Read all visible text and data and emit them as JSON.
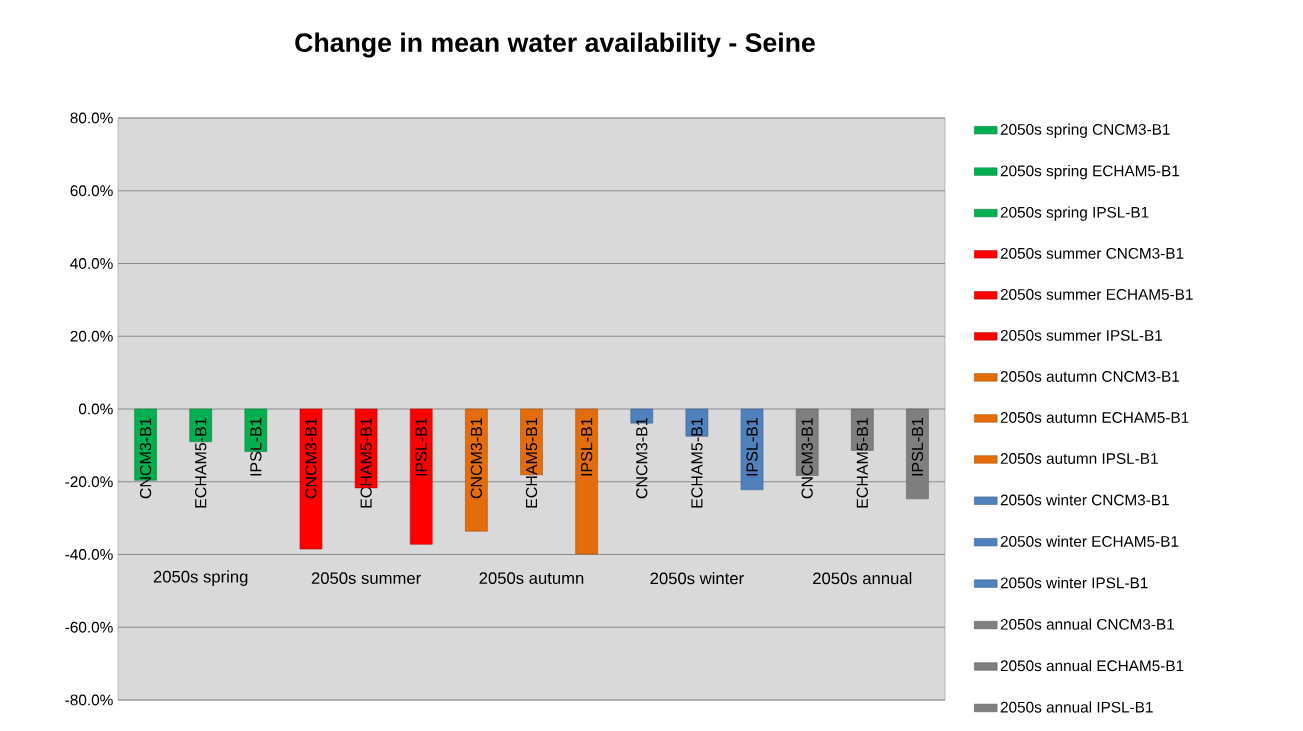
{
  "chart_data": {
    "type": "bar",
    "title": "Change in mean water availability - Seine",
    "categories": [
      "CNCM3-B1",
      "ECHAM5-B1",
      "IPSL-B1",
      "CNCM3-B1",
      "ECHAM5-B1",
      "IPSL-B1",
      "CNCM3-B1",
      "ECHAM5-B1",
      "IPSL-B1",
      "CNCM3-B1",
      "ECHAM5-B1",
      "IPSL-B1",
      "CNCM3-B1",
      "ECHAM5-B1",
      "IPSL-B1"
    ],
    "annotations": [
      "2050s spring",
      "2050s summer",
      "2050s autumn",
      "2050s winter",
      "2050s annual"
    ],
    "series": [
      {
        "name": "2050s spring CNCM3-B1",
        "color": "#00b050",
        "values": [
          -19.6,
          null,
          null,
          null,
          null,
          null,
          null,
          null,
          null,
          null,
          null,
          null,
          null,
          null,
          null
        ]
      },
      {
        "name": "2050s spring ECHAM5-B1",
        "color": "#00b050",
        "values": [
          null,
          -9.0,
          null,
          null,
          null,
          null,
          null,
          null,
          null,
          null,
          null,
          null,
          null,
          null,
          null
        ]
      },
      {
        "name": "2050s spring IPSL-B1",
        "color": "#00b050",
        "values": [
          null,
          null,
          -11.7,
          null,
          null,
          null,
          null,
          null,
          null,
          null,
          null,
          null,
          null,
          null,
          null
        ]
      },
      {
        "name": "2050s summer CNCM3-B1",
        "color": "#ff0000",
        "values": [
          null,
          null,
          null,
          -38.5,
          null,
          null,
          null,
          null,
          null,
          null,
          null,
          null,
          null,
          null,
          null
        ]
      },
      {
        "name": "2050s summer ECHAM5-B1",
        "color": "#ff0000",
        "values": [
          null,
          null,
          null,
          null,
          -21.7,
          null,
          null,
          null,
          null,
          null,
          null,
          null,
          null,
          null,
          null
        ]
      },
      {
        "name": "2050s summer IPSL-B1",
        "color": "#ff0000",
        "values": [
          null,
          null,
          null,
          null,
          null,
          -37.2,
          null,
          null,
          null,
          null,
          null,
          null,
          null,
          null,
          null
        ]
      },
      {
        "name": "2050s autumn CNCM3-B1",
        "color": "#e46c0a",
        "values": [
          null,
          null,
          null,
          null,
          null,
          null,
          -33.6,
          null,
          null,
          null,
          null,
          null,
          null,
          null,
          null
        ]
      },
      {
        "name": "2050s autumn ECHAM5-B1",
        "color": "#e46c0a",
        "values": [
          null,
          null,
          null,
          null,
          null,
          null,
          null,
          -18.1,
          null,
          null,
          null,
          null,
          null,
          null,
          null
        ]
      },
      {
        "name": "2050s autumn IPSL-B1",
        "color": "#e46c0a",
        "values": [
          null,
          null,
          null,
          null,
          null,
          null,
          null,
          null,
          -39.9,
          null,
          null,
          null,
          null,
          null,
          null
        ]
      },
      {
        "name": "2050s winter CNCM3-B1",
        "color": "#4f81bd",
        "values": [
          null,
          null,
          null,
          null,
          null,
          null,
          null,
          null,
          null,
          -3.9,
          null,
          null,
          null,
          null,
          null
        ]
      },
      {
        "name": "2050s winter ECHAM5-B1",
        "color": "#4f81bd",
        "values": [
          null,
          null,
          null,
          null,
          null,
          null,
          null,
          null,
          null,
          null,
          -7.5,
          null,
          null,
          null,
          null
        ]
      },
      {
        "name": "2050s winter IPSL-B1",
        "color": "#4f81bd",
        "values": [
          null,
          null,
          null,
          null,
          null,
          null,
          null,
          null,
          null,
          null,
          null,
          -22.2,
          null,
          null,
          null
        ]
      },
      {
        "name": "2050s annual CNCM3-B1",
        "color": "#7f7f7f",
        "values": [
          null,
          null,
          null,
          null,
          null,
          null,
          null,
          null,
          null,
          null,
          null,
          null,
          -18.3,
          null,
          null
        ]
      },
      {
        "name": "2050s annual ECHAM5-B1",
        "color": "#7f7f7f",
        "values": [
          null,
          null,
          null,
          null,
          null,
          null,
          null,
          null,
          null,
          null,
          null,
          null,
          null,
          -11.4,
          null
        ]
      },
      {
        "name": "2050s annual IPSL-B1",
        "color": "#7f7f7f",
        "values": [
          null,
          null,
          null,
          null,
          null,
          null,
          null,
          null,
          null,
          null,
          null,
          null,
          null,
          null,
          -24.7
        ]
      }
    ],
    "ylim": [
      -80,
      80
    ],
    "yticks": [
      {
        "value": -80,
        "label": "-80.0%"
      },
      {
        "value": -60,
        "label": "-60.0%"
      },
      {
        "value": -40,
        "label": "-40.0%"
      },
      {
        "value": -20,
        "label": "-20.0%"
      },
      {
        "value": 0,
        "label": "0.0%"
      },
      {
        "value": 20,
        "label": "20.0%"
      },
      {
        "value": 40,
        "label": "40.0%"
      },
      {
        "value": 60,
        "label": "60.0%"
      },
      {
        "value": 80,
        "label": "80.0%"
      }
    ],
    "grid": "y",
    "legend": "right"
  }
}
